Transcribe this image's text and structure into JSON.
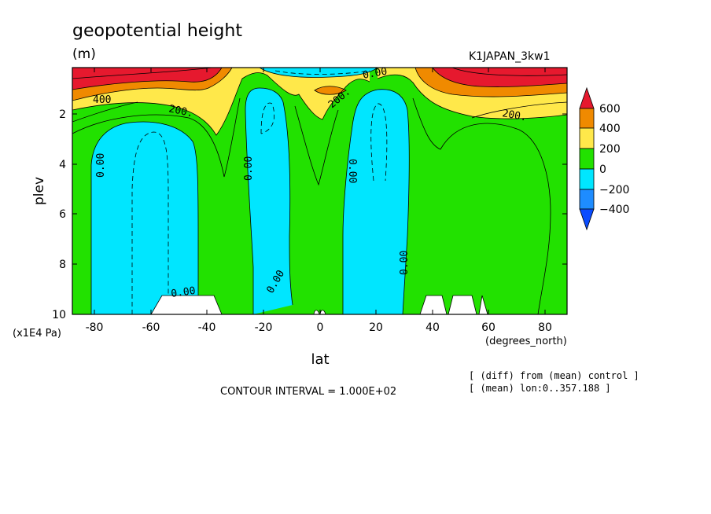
{
  "chart_data": {
    "type": "heatmap",
    "title": "geopotential height",
    "units": "(m)",
    "experiment": "K1JAPAN_3kw1",
    "xlabel": "lat",
    "x_units": "(degrees_north)",
    "ylabel": "plev",
    "y_scale_label": "(x1E4 Pa)",
    "xlim": [
      -87,
      87
    ],
    "ylim": [
      10,
      0.3
    ],
    "x_ticks": [
      "-80",
      "-60",
      "-40",
      "-20",
      "0",
      "20",
      "40",
      "60",
      "80"
    ],
    "y_ticks": [
      "2",
      "4",
      "6",
      "8",
      "10"
    ],
    "contour_interval_text": "CONTOUR INTERVAL = 1.000E+02",
    "notes": [
      "[ (diff) from (mean) control ]",
      "[ (mean) lon:0..357.188 ]"
    ],
    "colorbar": {
      "labels": [
        "600",
        "400",
        "200",
        "0",
        "−200",
        "−400"
      ],
      "colors": [
        "#e6192e",
        "#f08a00",
        "#ffe84a",
        "#22e100",
        "#00e6ff",
        "#1e8cff",
        "#0a4cff"
      ]
    },
    "contour_labels": [
      "400",
      "200.",
      "200.",
      "200.",
      "0.00",
      "0.00",
      "0.00",
      "0.00",
      "0.00",
      "0.00",
      "0.00"
    ],
    "regions": [
      {
        "level": "0 to 200",
        "color": "#22e100",
        "desc": "background"
      },
      {
        "level": "-200 to 0",
        "color": "#00e6ff",
        "lat_range": [
          -83,
          -44
        ],
        "plev_range": [
          1.8,
          10
        ]
      },
      {
        "level": "-200 to 0",
        "color": "#00e6ff",
        "lat_range": [
          -27,
          -11
        ],
        "plev_range": [
          0.9,
          9.7
        ]
      },
      {
        "level": "-200 to 0",
        "color": "#00e6ff",
        "lat_range": [
          11,
          31
        ],
        "plev_range": [
          1.0,
          10
        ]
      },
      {
        "level": "-200 to 0",
        "color": "#00e6ff",
        "lat_range": [
          -20,
          25
        ],
        "plev_range": [
          0.3,
          0.6
        ]
      },
      {
        "level": ">400",
        "color": "#e6192e",
        "lat_range": [
          -87,
          -55
        ],
        "plev_range": [
          0.3,
          0.7
        ]
      },
      {
        "level": ">400",
        "color": "#e6192e",
        "lat_range": [
          45,
          87
        ],
        "plev_range": [
          0.3,
          0.7
        ]
      }
    ]
  }
}
